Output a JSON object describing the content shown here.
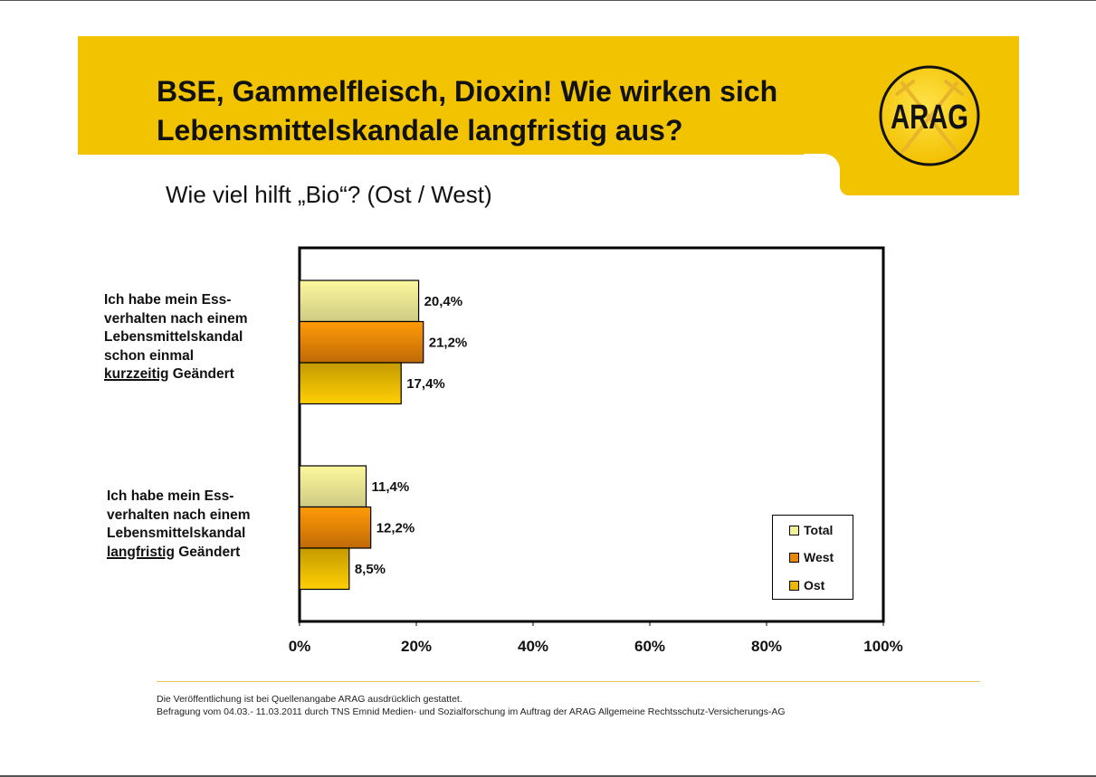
{
  "header": {
    "title_line1": "BSE, Gammelfleisch, Dioxin! Wie wirken sich",
    "title_line2": "Lebensmittelskandale langfristig aus?",
    "logo_text": "ARAG",
    "brand_color": "#f2c300"
  },
  "subtitle": "Wie viel hilft „Bio“? (Ost / West)",
  "chart_data": {
    "type": "bar",
    "orientation": "horizontal",
    "title": "Wie viel hilft „Bio“? (Ost / West)",
    "categories": [
      {
        "lines": [
          "Ich habe mein Ess-",
          "verhalten nach einem",
          "Lebensmittelskandal",
          "schon einmal"
        ],
        "underlined": "kurzzeitig",
        "suffix": " Geändert",
        "full": "Ich habe mein Essverhalten nach einem Lebensmittelskandal schon einmal kurzzeitig Geändert"
      },
      {
        "lines": [
          "Ich habe mein Ess-",
          "verhalten nach einem",
          "Lebensmittelskandal"
        ],
        "underlined": "langfristig",
        "suffix": " Geändert",
        "full": "Ich habe mein Essverhalten nach einem Lebensmittelskandal langfristig Geändert"
      }
    ],
    "series": [
      {
        "name": "Total",
        "values": [
          20.4,
          11.4
        ],
        "labels": [
          "20,4%",
          "11,4%"
        ],
        "color": "#f3f09a"
      },
      {
        "name": "West",
        "values": [
          21.2,
          12.2
        ],
        "labels": [
          "21,2%",
          "12,2%"
        ],
        "color": "#e8860a"
      },
      {
        "name": "Ost",
        "values": [
          17.4,
          8.5
        ],
        "labels": [
          "17,4%",
          "8,5%"
        ],
        "color": "#e8b800"
      }
    ],
    "xlim": [
      0,
      100
    ],
    "xticks": [
      0,
      20,
      40,
      60,
      80,
      100
    ],
    "xtick_labels": [
      "0%",
      "20%",
      "40%",
      "60%",
      "80%",
      "100%"
    ],
    "xlabel": "",
    "ylabel": "",
    "grid": false,
    "legend_position": "bottom-right"
  },
  "footer": {
    "line1": "Die Veröffentlichung ist bei Quellenangabe ARAG ausdrücklich gestattet.",
    "line2": "Befragung vom 04.03.- 11.03.2011 durch TNS Emnid Medien- und Sozialforschung im Auftrag der ARAG Allgemeine Rechtsschutz-Versicherungs-AG"
  }
}
